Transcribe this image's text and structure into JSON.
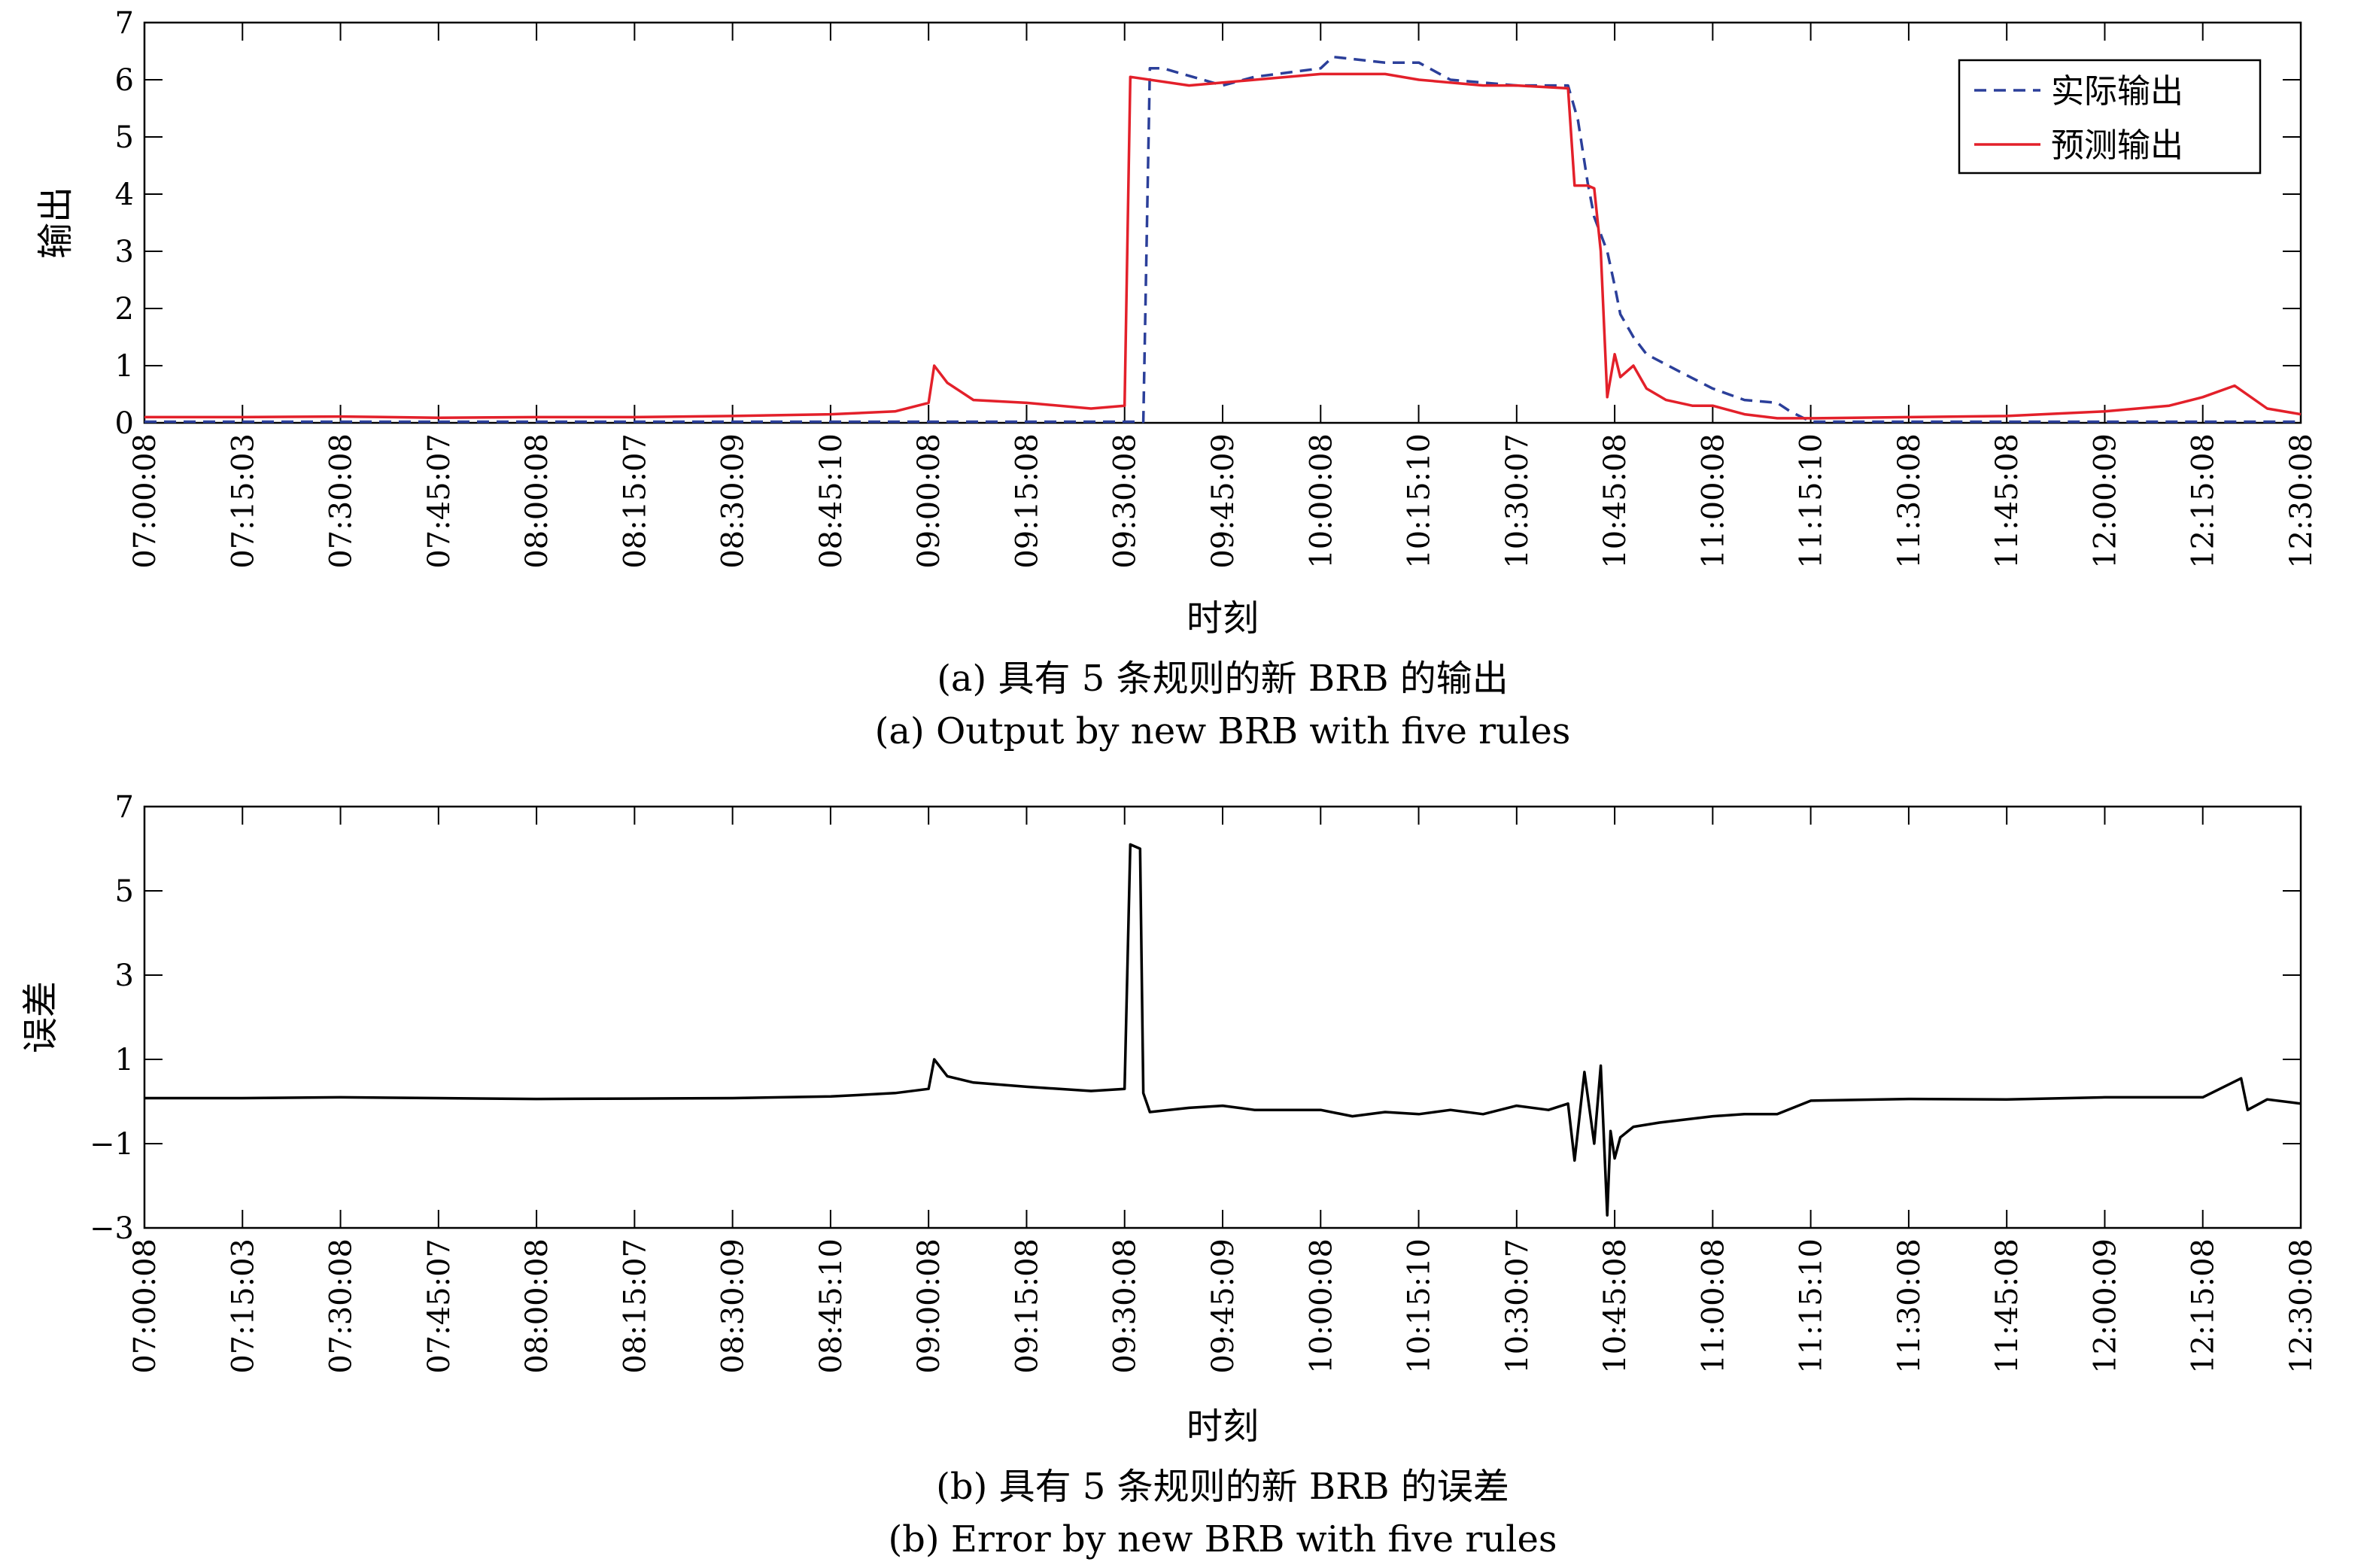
{
  "chart_data": [
    {
      "type": "line",
      "panel": "a",
      "xlabel": "时刻",
      "ylabel": "输出",
      "caption_cn": "(a) 具有 5 条规则的新 BRB 的输出",
      "caption_en": "(a) Output by new BRB with five rules",
      "ylim": [
        0,
        7
      ],
      "yticks": [
        "0",
        "1",
        "2",
        "3",
        "4",
        "5",
        "6",
        "7"
      ],
      "xlim": [
        "07:00:08",
        "12:30:08"
      ],
      "xticks": [
        "07:00:08",
        "07:15:03",
        "07:30:08",
        "07:45:07",
        "08:00:08",
        "08:15:07",
        "08:30:09",
        "08:45:10",
        "09:00:08",
        "09:15:08",
        "09:30:08",
        "09:45:09",
        "10:00:08",
        "10:15:10",
        "10:30:07",
        "10:45:08",
        "11:00:08",
        "11:15:10",
        "11:30:08",
        "11:45:08",
        "12:00:09",
        "12:15:08",
        "12:30:08"
      ],
      "legend_position": "top-right",
      "series": [
        {
          "name": "实际输出",
          "color": "#2b3f9a",
          "style": "dashed",
          "x": [
            "07:00:08",
            "09:33:00",
            "09:34:00",
            "09:36:00",
            "09:45:09",
            "09:50:00",
            "10:00:08",
            "10:02:00",
            "10:10:00",
            "10:15:10",
            "10:20:00",
            "10:30:07",
            "10:38:00",
            "10:39:30",
            "10:41:00",
            "10:42:00",
            "10:44:00",
            "10:45:08",
            "10:46:00",
            "10:48:00",
            "10:50:00",
            "10:55:00",
            "11:00:08",
            "11:05:00",
            "11:10:00",
            "11:12:00",
            "11:15:10",
            "12:30:08"
          ],
          "values": [
            0.02,
            0.02,
            6.2,
            6.2,
            5.9,
            6.05,
            6.2,
            6.4,
            6.3,
            6.3,
            6.0,
            5.9,
            5.9,
            5.3,
            4.2,
            3.6,
            3.0,
            2.4,
            1.9,
            1.5,
            1.2,
            0.9,
            0.6,
            0.4,
            0.35,
            0.2,
            0.02,
            0.02
          ]
        },
        {
          "name": "预测输出",
          "color": "#e3202a",
          "style": "solid",
          "x": [
            "07:00:08",
            "07:15:03",
            "07:30:08",
            "07:45:07",
            "08:00:08",
            "08:15:07",
            "08:30:09",
            "08:45:10",
            "08:55:00",
            "09:00:08",
            "09:01:00",
            "09:03:00",
            "09:07:00",
            "09:15:08",
            "09:25:00",
            "09:30:08",
            "09:31:00",
            "09:40:00",
            "09:45:09",
            "09:55:00",
            "10:00:08",
            "10:10:00",
            "10:15:10",
            "10:25:00",
            "10:30:07",
            "10:38:00",
            "10:39:00",
            "10:41:00",
            "10:42:00",
            "10:43:00",
            "10:44:00",
            "10:45:08",
            "10:46:00",
            "10:48:00",
            "10:50:00",
            "10:53:00",
            "10:57:00",
            "11:00:08",
            "11:05:00",
            "11:10:00",
            "11:15:10",
            "11:30:08",
            "11:45:08",
            "12:00:09",
            "12:10:00",
            "12:15:08",
            "12:20:00",
            "12:25:00",
            "12:30:08"
          ],
          "values": [
            0.1,
            0.1,
            0.11,
            0.09,
            0.1,
            0.1,
            0.12,
            0.15,
            0.2,
            0.35,
            1.0,
            0.7,
            0.4,
            0.35,
            0.25,
            0.3,
            6.05,
            5.9,
            5.95,
            6.05,
            6.1,
            6.1,
            6.0,
            5.9,
            5.9,
            5.85,
            4.15,
            4.15,
            4.1,
            3.0,
            0.45,
            1.2,
            0.8,
            1.0,
            0.6,
            0.4,
            0.3,
            0.3,
            0.15,
            0.08,
            0.08,
            0.1,
            0.12,
            0.2,
            0.3,
            0.45,
            0.65,
            0.25,
            0.15
          ]
        }
      ]
    },
    {
      "type": "line",
      "panel": "b",
      "xlabel": "时刻",
      "ylabel": "误差",
      "caption_cn": "(b) 具有 5 条规则的新 BRB 的误差",
      "caption_en": "(b) Error by new BRB with five rules",
      "ylim": [
        -3,
        7
      ],
      "yticks": [
        "−3",
        "−1",
        "1",
        "3",
        "5",
        "7"
      ],
      "xlim": [
        "07:00:08",
        "12:30:08"
      ],
      "xticks": [
        "07:00:08",
        "07:15:03",
        "07:30:08",
        "07:45:07",
        "08:00:08",
        "08:15:07",
        "08:30:09",
        "08:45:10",
        "09:00:08",
        "09:15:08",
        "09:30:08",
        "09:45:09",
        "10:00:08",
        "10:15:10",
        "10:30:07",
        "10:45:08",
        "11:00:08",
        "11:15:10",
        "11:30:08",
        "11:45:08",
        "12:00:09",
        "12:15:08",
        "12:30:08"
      ],
      "series": [
        {
          "color": "#000000",
          "style": "solid",
          "x": [
            "07:00:08",
            "07:15:03",
            "07:30:08",
            "07:45:07",
            "08:00:08",
            "08:15:07",
            "08:30:09",
            "08:45:10",
            "08:55:00",
            "09:00:08",
            "09:01:00",
            "09:03:00",
            "09:07:00",
            "09:15:08",
            "09:25:00",
            "09:30:08",
            "09:31:00",
            "09:32:30",
            "09:33:00",
            "09:34:00",
            "09:40:00",
            "09:45:09",
            "09:50:00",
            "10:00:08",
            "10:05:00",
            "10:10:00",
            "10:15:10",
            "10:20:00",
            "10:25:00",
            "10:30:07",
            "10:35:00",
            "10:38:00",
            "10:39:00",
            "10:40:30",
            "10:42:00",
            "10:43:00",
            "10:44:00",
            "10:44:30",
            "10:45:08",
            "10:46:00",
            "10:48:00",
            "10:52:00",
            "11:00:08",
            "11:05:00",
            "11:10:00",
            "11:15:10",
            "11:30:08",
            "11:45:08",
            "12:00:09",
            "12:15:08",
            "12:21:00",
            "12:22:00",
            "12:25:00",
            "12:30:08"
          ],
          "values": [
            0.08,
            0.08,
            0.1,
            0.08,
            0.06,
            0.07,
            0.08,
            0.12,
            0.2,
            0.3,
            1.0,
            0.6,
            0.45,
            0.35,
            0.25,
            0.3,
            6.1,
            6.0,
            0.2,
            -0.25,
            -0.15,
            -0.1,
            -0.2,
            -0.2,
            -0.35,
            -0.25,
            -0.3,
            -0.2,
            -0.3,
            -0.1,
            -0.2,
            -0.05,
            -1.4,
            0.7,
            -1.0,
            0.85,
            -2.7,
            -0.7,
            -1.35,
            -0.85,
            -0.6,
            -0.5,
            -0.35,
            -0.3,
            -0.3,
            0.02,
            0.06,
            0.05,
            0.1,
            0.1,
            0.55,
            -0.2,
            0.05,
            -0.05
          ]
        }
      ]
    }
  ]
}
